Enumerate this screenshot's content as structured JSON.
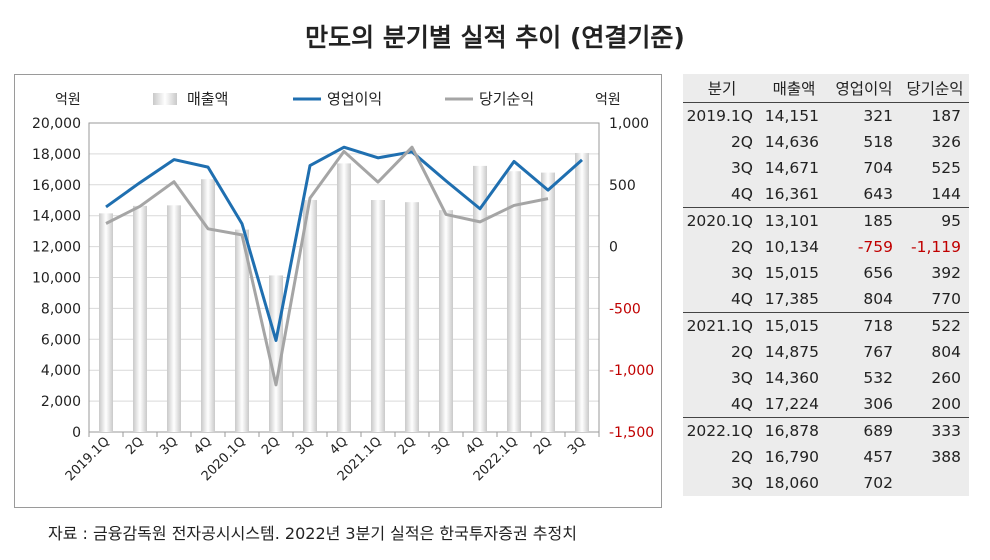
{
  "title": "만도의 분기별 실적 추이 (연결기준)",
  "footnote": "자료 : 금융감독원 전자공시시스템. 2022년 3분기 실적은 한국투자증권 추정치",
  "colors": {
    "revenue": "#d6d6d6",
    "operating": "#1f6fb0",
    "net": "#a5a5a5",
    "negative": "#c00000"
  },
  "chart_data": {
    "type": "bar",
    "categories": [
      "2019.1Q",
      "2Q",
      "3Q",
      "4Q",
      "2020.1Q",
      "2Q",
      "3Q",
      "4Q",
      "2021.1Q",
      "2Q",
      "3Q",
      "4Q",
      "2022.1Q",
      "2Q",
      "3Q"
    ],
    "left_axis_unit": "억원",
    "right_axis_unit": "억원",
    "ylim_left": [
      0,
      20000
    ],
    "yticks_left": [
      "0",
      "2,000",
      "4,000",
      "6,000",
      "8,000",
      "10,000",
      "12,000",
      "14,000",
      "16,000",
      "18,000",
      "20,000"
    ],
    "ylim_right": [
      -1500,
      1000
    ],
    "yticks_right": [
      "-1,500",
      "-1,000",
      "-500",
      "0",
      "500",
      "1,000"
    ],
    "legend_position": "top",
    "series": [
      {
        "name": "매출액",
        "type": "bar",
        "axis": "left",
        "values": [
          14151,
          14636,
          14671,
          16361,
          13101,
          10134,
          15015,
          17385,
          15015,
          14875,
          14360,
          17224,
          16878,
          16790,
          18060
        ]
      },
      {
        "name": "영업이익",
        "type": "line",
        "axis": "right",
        "values": [
          321,
          518,
          704,
          643,
          185,
          -759,
          656,
          804,
          718,
          767,
          532,
          306,
          689,
          457,
          702
        ]
      },
      {
        "name": "당기순익",
        "type": "line",
        "axis": "right",
        "values": [
          187,
          326,
          525,
          144,
          95,
          -1119,
          392,
          770,
          522,
          804,
          260,
          200,
          333,
          388,
          null
        ]
      }
    ]
  },
  "table": {
    "headers": [
      "분기",
      "매출액",
      "영업이익",
      "당기순익"
    ],
    "rows": [
      [
        "2019.1Q",
        "14,151",
        "321",
        "187"
      ],
      [
        "2Q",
        "14,636",
        "518",
        "326"
      ],
      [
        "3Q",
        "14,671",
        "704",
        "525"
      ],
      [
        "4Q",
        "16,361",
        "643",
        "144"
      ],
      [
        "2020.1Q",
        "13,101",
        "185",
        "95"
      ],
      [
        "2Q",
        "10,134",
        "-759",
        "-1,119"
      ],
      [
        "3Q",
        "15,015",
        "656",
        "392"
      ],
      [
        "4Q",
        "17,385",
        "804",
        "770"
      ],
      [
        "2021.1Q",
        "15,015",
        "718",
        "522"
      ],
      [
        "2Q",
        "14,875",
        "767",
        "804"
      ],
      [
        "3Q",
        "14,360",
        "532",
        "260"
      ],
      [
        "4Q",
        "17,224",
        "306",
        "200"
      ],
      [
        "2022.1Q",
        "16,878",
        "689",
        "333"
      ],
      [
        "2Q",
        "16,790",
        "457",
        "388"
      ],
      [
        "3Q",
        "18,060",
        "702",
        ""
      ]
    ]
  }
}
